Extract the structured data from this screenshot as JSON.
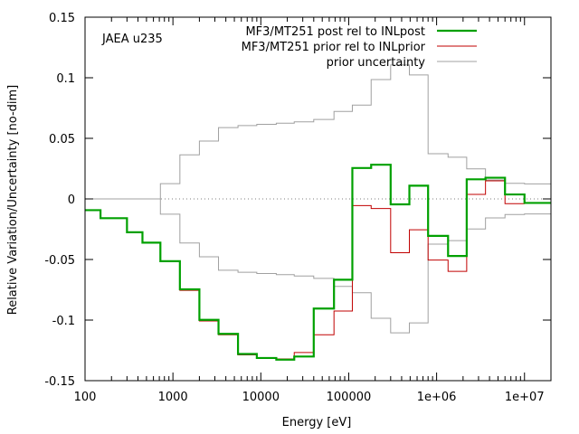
{
  "chart_data": {
    "type": "line",
    "step": true,
    "title": "",
    "annotation": "JAEA u235",
    "xlabel": "Energy [eV]",
    "ylabel": "Relative Variation/Uncertainty [no-dim]",
    "xscale": "log",
    "xlim": [
      100,
      20000000
    ],
    "ylim": [
      -0.15,
      0.15
    ],
    "x_ticks": [
      {
        "value": 100,
        "label": "100"
      },
      {
        "value": 1000,
        "label": "1000"
      },
      {
        "value": 10000,
        "label": "10000"
      },
      {
        "value": 100000,
        "label": "100000"
      },
      {
        "value": 1000000,
        "label": "1e+06"
      },
      {
        "value": 10000000,
        "label": "1e+07"
      }
    ],
    "y_ticks": [
      {
        "value": -0.15,
        "label": "-0.15"
      },
      {
        "value": -0.1,
        "label": "-0.1"
      },
      {
        "value": -0.05,
        "label": "-0.05"
      },
      {
        "value": 0,
        "label": "0"
      },
      {
        "value": 0.05,
        "label": "0.05"
      },
      {
        "value": 0.1,
        "label": "0.1"
      },
      {
        "value": 0.15,
        "label": "0.15"
      }
    ],
    "grid": false,
    "legend_position": "top-right",
    "zero_line": "dotted",
    "bin_edges": [
      100,
      150,
      300,
      450,
      720,
      1200,
      2000,
      3300,
      5500,
      9000,
      15000,
      24000,
      40000,
      68000,
      110000,
      180000,
      300000,
      490000,
      800000,
      1350000,
      2200000,
      3600000,
      6000000,
      10000000,
      20000000
    ],
    "series": [
      {
        "name": "MF3/MT251 post rel to INLpost",
        "color": "#00a000",
        "width": 2.2,
        "values": [
          -0.0093,
          -0.0159,
          -0.0275,
          -0.0361,
          -0.0514,
          -0.0746,
          -0.0998,
          -0.1114,
          -0.128,
          -0.1313,
          -0.1327,
          -0.1301,
          -0.0905,
          -0.0667,
          0.0255,
          0.0282,
          -0.0045,
          0.0109,
          -0.0305,
          -0.0471,
          0.0162,
          0.0175,
          0.0037,
          -0.0033
        ]
      },
      {
        "name": "MF3/MT251 prior rel to INLprior",
        "color": "#c00000",
        "width": 1,
        "values": [
          -0.0093,
          -0.0159,
          -0.0275,
          -0.0361,
          -0.0514,
          -0.0755,
          -0.1007,
          -0.1121,
          -0.1287,
          -0.1317,
          -0.1321,
          -0.1268,
          -0.1121,
          -0.0925,
          -0.0055,
          -0.0079,
          -0.0444,
          -0.0255,
          -0.0505,
          -0.0598,
          0.0037,
          0.0149,
          -0.0039,
          -0.0033
        ]
      },
      {
        "name": "prior uncertainty",
        "color": "#a0a0a0",
        "width": 1,
        "values": [
          0.0,
          0.0,
          0.0,
          0.0,
          0.0126,
          0.0364,
          0.0478,
          0.0589,
          0.0605,
          0.0616,
          0.0625,
          0.0636,
          0.0656,
          0.0722,
          0.0774,
          0.0985,
          0.1105,
          0.1023,
          0.0373,
          0.0344,
          0.0248,
          0.0157,
          0.0129,
          0.0124
        ],
        "mirror": true
      }
    ]
  }
}
